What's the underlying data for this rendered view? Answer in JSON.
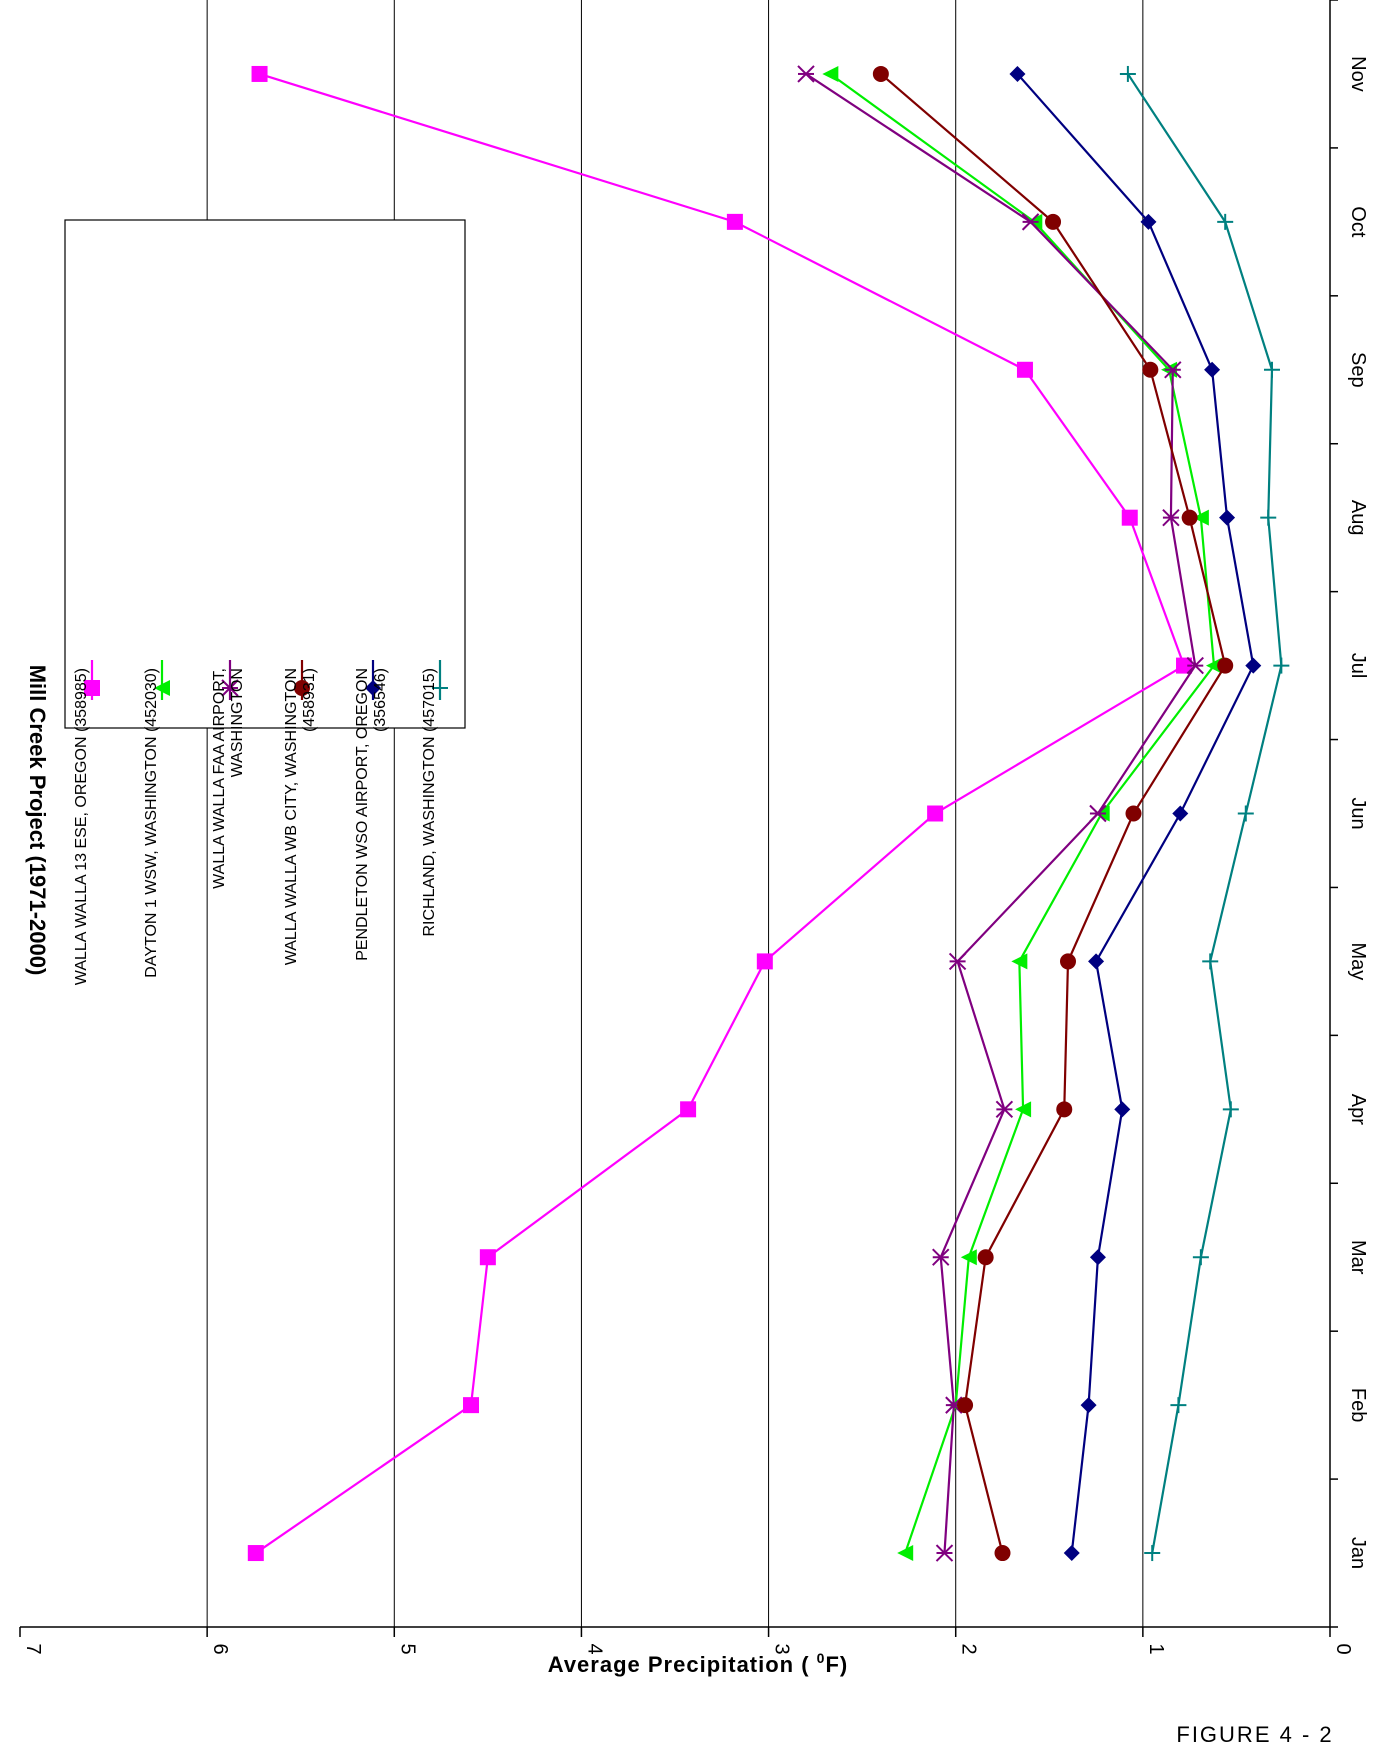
{
  "chart_data": {
    "type": "line",
    "title": "Mill Creek Project (1971-2000)",
    "xlabel": "",
    "ylabel": "Average Precipitation ( ",
    "ylabel_sup": "0",
    "ylabel_end": "F)",
    "ylim": [
      0,
      7
    ],
    "yticks": [
      "0",
      "1",
      "2",
      "3",
      "4",
      "5",
      "6",
      "7"
    ],
    "categories": [
      "Jan",
      "Feb",
      "Mar",
      "Apr",
      "May",
      "Jun",
      "Jul",
      "Aug",
      "Sep",
      "Oct",
      "Nov"
    ],
    "grid": true,
    "legend_position": "top-center",
    "series": [
      {
        "name": "WALLA WALLA 13 ESE, OREGON (358985)",
        "color": "#ff00ff",
        "marker": "square",
        "values": [
          5.74,
          4.59,
          4.5,
          3.43,
          3.02,
          2.11,
          0.78,
          1.07,
          1.63,
          3.18,
          5.72
        ]
      },
      {
        "name": "DAYTON 1 WSW, WASHINGTON (452030)",
        "color": "#00ee00",
        "marker": "triangle",
        "values": [
          2.27,
          2.0,
          1.93,
          1.64,
          1.66,
          1.22,
          0.62,
          0.69,
          0.86,
          1.58,
          2.67
        ]
      },
      {
        "name": "WALLA WALLA FAA AIRPORT, WASHINGTON",
        "color": "#800080",
        "marker": "star",
        "values": [
          2.06,
          2.01,
          2.08,
          1.74,
          1.99,
          1.24,
          0.72,
          0.85,
          0.84,
          1.6,
          2.8
        ]
      },
      {
        "name": "WALLA WALLA WB CITY, WASHINGTON (458931)",
        "color": "#800000",
        "marker": "circle",
        "values": [
          1.75,
          1.95,
          1.84,
          1.42,
          1.4,
          1.05,
          0.56,
          0.75,
          0.96,
          1.48,
          2.4
        ]
      },
      {
        "name": "PENDLETON WSO AIRPORT, OREGON (356546)",
        "color": "#000080",
        "marker": "diamond",
        "values": [
          1.38,
          1.29,
          1.24,
          1.11,
          1.25,
          0.8,
          0.41,
          0.55,
          0.63,
          0.97,
          1.67
        ]
      },
      {
        "name": "RICHLAND, WASHINGTON (457015)",
        "color": "#008080",
        "marker": "plus",
        "values": [
          0.95,
          0.81,
          0.69,
          0.53,
          0.64,
          0.45,
          0.26,
          0.33,
          0.31,
          0.56,
          1.08
        ]
      }
    ],
    "legend_lines": [
      [
        "WALLA WALLA 13 ESE, OREGON (358985)"
      ],
      [
        "DAYTON 1 WSW, WASHINGTON (452030)"
      ],
      [
        "WALLA WALLA FAA AIRPORT,",
        "WASHINGTON"
      ],
      [
        "WALLA WALLA WB CITY, WASHINGTON",
        "(458931)"
      ],
      [
        "PENDLETON WSO AIRPORT, OREGON",
        "(356546)"
      ],
      [
        "RICHLAND, WASHINGTON (457015)"
      ]
    ]
  },
  "figure_label": "FIGURE 4 - 2"
}
